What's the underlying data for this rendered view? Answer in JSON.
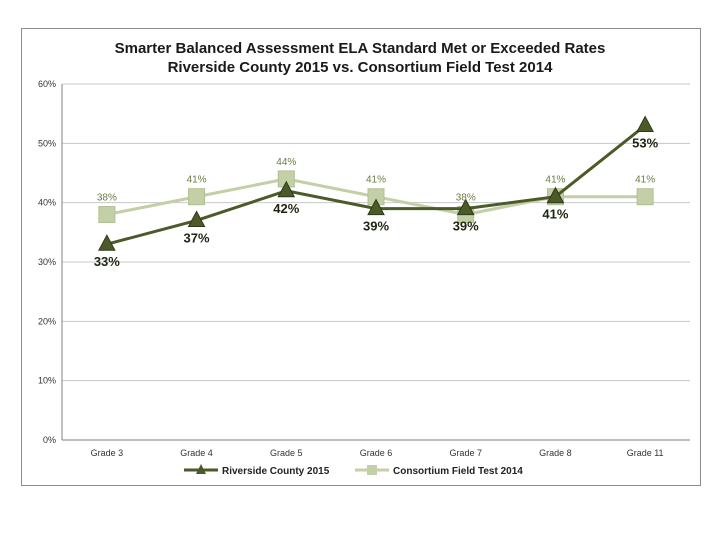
{
  "chart_data": {
    "type": "line",
    "title": "Smarter Balanced Assessment ELA Standard Met or Exceeded Rates",
    "subtitle": "Riverside County 2015 vs. Consortium Field Test 2014",
    "categories": [
      "Grade 3",
      "Grade 4",
      "Grade 5",
      "Grade 6",
      "Grade 7",
      "Grade 8",
      "Grade 11"
    ],
    "ylim": [
      0,
      60
    ],
    "yticks": [
      0,
      10,
      20,
      30,
      40,
      50,
      60
    ],
    "ytick_labels": [
      "0%",
      "10%",
      "20%",
      "30%",
      "40%",
      "50%",
      "60%"
    ],
    "grid": true,
    "legend_position": "bottom",
    "series": [
      {
        "name": "Riverside County 2015",
        "marker": "triangle",
        "color": "#4b5a28",
        "values": [
          33,
          37,
          42,
          39,
          39,
          41,
          53
        ],
        "labels": [
          "33%",
          "37%",
          "42%",
          "39%",
          "39%",
          "41%",
          "53%"
        ]
      },
      {
        "name": "Consortium Field Test 2014",
        "marker": "square",
        "color": "#c3cfa6",
        "values": [
          38,
          41,
          44,
          41,
          38,
          41,
          41
        ],
        "labels": [
          "38%",
          "41%",
          "44%",
          "41%",
          "38%",
          "41%",
          "41%"
        ]
      }
    ]
  }
}
